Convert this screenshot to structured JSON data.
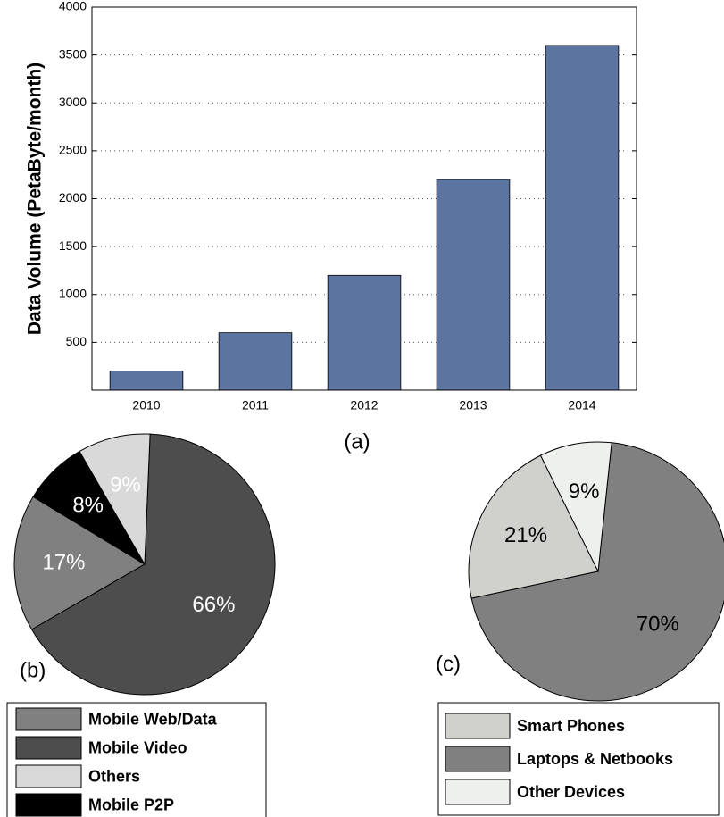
{
  "chart_data": [
    {
      "type": "bar",
      "title": "(a)",
      "ylabel": "Data Volume (PetaByte/month)",
      "categories": [
        "2010",
        "2011",
        "2012",
        "2013",
        "2014"
      ],
      "values": [
        200,
        600,
        1200,
        2200,
        3600
      ],
      "color": "#5b74a0",
      "ylim": [
        0,
        4000
      ],
      "yticks": [
        500,
        1000,
        1500,
        2000,
        2500,
        3000,
        3500,
        4000
      ],
      "grid": true
    },
    {
      "type": "pie",
      "title": "(b)",
      "categories": [
        "Mobile Web/Data",
        "Mobile Video",
        "Others",
        "Mobile P2P"
      ],
      "values": [
        17,
        66,
        9,
        8
      ],
      "value_labels": [
        "17%",
        "66%",
        "9%",
        "8%"
      ],
      "colors": [
        "#808080",
        "#4d4d4d",
        "#d9d9d9",
        "#000000"
      ],
      "label_color": "#ffffff"
    },
    {
      "type": "pie",
      "title": "(c)",
      "categories": [
        "Smart Phones",
        "Laptops & Netbooks",
        "Other Devices"
      ],
      "values": [
        21,
        70,
        9
      ],
      "value_labels": [
        "21%",
        "70%",
        "9%"
      ],
      "colors": [
        "#d0d0cc",
        "#808080",
        "#eef0ee"
      ],
      "label_color": "#000000"
    }
  ]
}
